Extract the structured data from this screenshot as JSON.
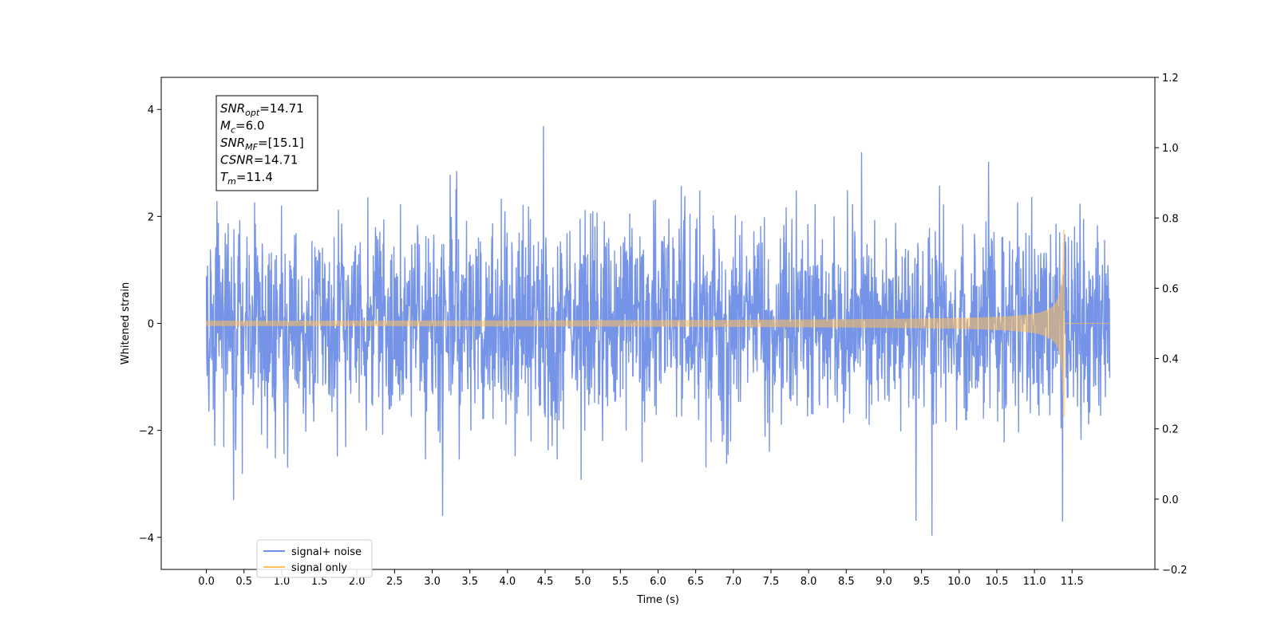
{
  "chart_data": {
    "type": "line",
    "xlabel": "Time (s)",
    "ylabel": "Whitened strain",
    "xlim": [
      -0.6,
      12.6
    ],
    "ylim": [
      -4.6,
      4.6
    ],
    "y2lim": [
      -0.2,
      1.2
    ],
    "x_ticks": [
      "0.0",
      "0.5",
      "1.0",
      "1.5",
      "2.0",
      "2.5",
      "3.0",
      "3.5",
      "4.0",
      "4.5",
      "5.0",
      "5.5",
      "6.0",
      "6.5",
      "7.0",
      "7.5",
      "8.0",
      "8.5",
      "9.0",
      "9.5",
      "10.0",
      "10.5",
      "11.0",
      "11.5"
    ],
    "y_ticks": [
      -4,
      -2,
      0,
      2,
      4
    ],
    "y2_ticks": [
      "−0.2",
      "0.0",
      "0.2",
      "0.4",
      "0.6",
      "0.8",
      "1.0",
      "1.2"
    ],
    "series": [
      {
        "name": "signal+ noise",
        "color": "#6f8ee6",
        "description": "whitened noise, roughly Gaussian with unit std, spanning t=0 to t=12",
        "t_range": [
          0,
          12
        ],
        "envelope_max": 4.2,
        "envelope_min": -4.0
      },
      {
        "name": "signal only",
        "color": "#ffbf5a",
        "description": "chirp waveform, amplitude growing until merger",
        "t_range": [
          0,
          12
        ],
        "merger_time": 11.4,
        "peak_amplitude": 1.75
      }
    ],
    "legend": {
      "position": "lower-left"
    },
    "annotation": {
      "lines": [
        {
          "var": "SNR",
          "sub": "opt",
          "rest": "=14.71"
        },
        {
          "var": "M",
          "sub": "c",
          "rest": "=6.0"
        },
        {
          "var": "SNR",
          "sub": "MF",
          "rest": "=[15.1]"
        },
        {
          "var": "CSNR",
          "sub": "",
          "rest": "=14.71"
        },
        {
          "var": "T",
          "sub": "m",
          "rest": "=11.4"
        }
      ]
    }
  }
}
